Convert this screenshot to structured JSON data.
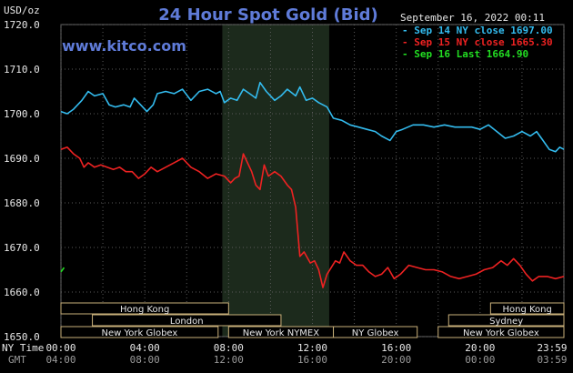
{
  "header": {
    "title": "24 Hour Spot Gold (Bid)",
    "website": "www.kitco.com",
    "unit": "USD/oz",
    "timestamp": "September 16, 2022 00:11"
  },
  "legend": [
    {
      "text": "Sep 14 NY close 1697.00",
      "color": "#33bbee"
    },
    {
      "text": "Sep 15 NY close 1665.30",
      "color": "#ee2222"
    },
    {
      "text": "Sep 16 Last 1664.90",
      "color": "#22dd22"
    }
  ],
  "sessions": [
    {
      "label": "Hong Kong",
      "start": 0,
      "end": 8,
      "row": 0
    },
    {
      "label": "Hong Kong",
      "start": 20.5,
      "end": 24,
      "row": 0
    },
    {
      "label": "London",
      "start": 1.5,
      "end": 10.5,
      "row": 1
    },
    {
      "label": "Sydney",
      "start": 18.5,
      "end": 24,
      "row": 1
    },
    {
      "label": "New York Globex",
      "start": 0,
      "end": 7.5,
      "row": 2
    },
    {
      "label": "New York NYMEX",
      "start": 8,
      "end": 13,
      "row": 2
    },
    {
      "label": "NY Globex",
      "start": 13,
      "end": 17,
      "row": 2
    },
    {
      "label": "New York Globex",
      "start": 18,
      "end": 24,
      "row": 2
    }
  ],
  "time_axis": {
    "ny_label": "NY Time",
    "gmt_label": "GMT",
    "ny": [
      "00:00",
      "04:00",
      "08:00",
      "12:00",
      "16:00",
      "20:00",
      "23:59"
    ],
    "gmt": [
      "04:00",
      "08:00",
      "12:00",
      "16:00",
      "20:00",
      "00:00",
      "03:59"
    ]
  },
  "chart_data": {
    "type": "line",
    "title": "24 Hour Spot Gold (Bid)",
    "ylabel": "USD/oz",
    "xlim": [
      0,
      24
    ],
    "ylim": [
      1650,
      1720
    ],
    "yticks": [
      "1650.0",
      "1660.0",
      "1670.0",
      "1680.0",
      "1690.0",
      "1700.0",
      "1710.0",
      "1720.0"
    ],
    "yticks_values": [
      1650,
      1660,
      1670,
      1680,
      1690,
      1700,
      1710,
      1720
    ],
    "grid": true,
    "shaded_region": [
      7.7,
      12.8
    ],
    "series": [
      {
        "name": "Sep 14 NY close 1697.00",
        "color": "#33bbee",
        "points": [
          [
            0,
            1700.5
          ],
          [
            0.3,
            1700
          ],
          [
            0.6,
            1701
          ],
          [
            1,
            1703
          ],
          [
            1.3,
            1705
          ],
          [
            1.6,
            1704
          ],
          [
            2,
            1704.5
          ],
          [
            2.3,
            1702
          ],
          [
            2.6,
            1701.5
          ],
          [
            3,
            1702
          ],
          [
            3.3,
            1701.5
          ],
          [
            3.5,
            1703.5
          ],
          [
            3.8,
            1702
          ],
          [
            4.1,
            1700.5
          ],
          [
            4.4,
            1702
          ],
          [
            4.6,
            1704.5
          ],
          [
            5,
            1705
          ],
          [
            5.4,
            1704.5
          ],
          [
            5.8,
            1705.5
          ],
          [
            6.2,
            1703
          ],
          [
            6.6,
            1705
          ],
          [
            7,
            1705.5
          ],
          [
            7.4,
            1704.5
          ],
          [
            7.6,
            1705
          ],
          [
            7.8,
            1702.5
          ],
          [
            8.1,
            1703.5
          ],
          [
            8.4,
            1703
          ],
          [
            8.7,
            1705.5
          ],
          [
            9,
            1704.5
          ],
          [
            9.3,
            1703.5
          ],
          [
            9.5,
            1707
          ],
          [
            9.8,
            1705
          ],
          [
            10.2,
            1703
          ],
          [
            10.5,
            1704
          ],
          [
            10.8,
            1705.5
          ],
          [
            11.2,
            1704
          ],
          [
            11.4,
            1706
          ],
          [
            11.7,
            1703
          ],
          [
            12,
            1703.5
          ],
          [
            12.3,
            1702.5
          ],
          [
            12.7,
            1701.5
          ],
          [
            13,
            1699
          ],
          [
            13.4,
            1698.5
          ],
          [
            13.8,
            1697.5
          ],
          [
            14.2,
            1697
          ],
          [
            14.6,
            1696.5
          ],
          [
            15,
            1696
          ],
          [
            15.3,
            1695
          ],
          [
            15.7,
            1694
          ],
          [
            16,
            1696
          ],
          [
            16.3,
            1696.5
          ],
          [
            16.8,
            1697.5
          ],
          [
            17.3,
            1697.5
          ],
          [
            17.8,
            1697
          ],
          [
            18.3,
            1697.5
          ],
          [
            18.8,
            1697
          ],
          [
            19.2,
            1697
          ],
          [
            19.6,
            1697
          ],
          [
            20,
            1696.5
          ],
          [
            20.4,
            1697.5
          ],
          [
            20.8,
            1696
          ],
          [
            21.2,
            1694.5
          ],
          [
            21.6,
            1695
          ],
          [
            22,
            1696
          ],
          [
            22.4,
            1695
          ],
          [
            22.7,
            1696
          ],
          [
            23,
            1694
          ],
          [
            23.3,
            1692
          ],
          [
            23.6,
            1691.5
          ],
          [
            23.8,
            1692.5
          ],
          [
            24,
            1692
          ]
        ]
      },
      {
        "name": "Sep 15 NY close 1665.30",
        "color": "#ee2222",
        "points": [
          [
            0,
            1692
          ],
          [
            0.3,
            1692.5
          ],
          [
            0.6,
            1691
          ],
          [
            0.9,
            1690
          ],
          [
            1.1,
            1688
          ],
          [
            1.3,
            1689
          ],
          [
            1.6,
            1688
          ],
          [
            1.9,
            1688.5
          ],
          [
            2.2,
            1688
          ],
          [
            2.5,
            1687.5
          ],
          [
            2.8,
            1688
          ],
          [
            3.1,
            1687
          ],
          [
            3.4,
            1687
          ],
          [
            3.7,
            1685.5
          ],
          [
            4,
            1686.5
          ],
          [
            4.3,
            1688
          ],
          [
            4.6,
            1687
          ],
          [
            5,
            1688
          ],
          [
            5.4,
            1689
          ],
          [
            5.8,
            1690
          ],
          [
            6.2,
            1688
          ],
          [
            6.6,
            1687
          ],
          [
            7,
            1685.5
          ],
          [
            7.4,
            1686.5
          ],
          [
            7.8,
            1686
          ],
          [
            8.1,
            1684.5
          ],
          [
            8.3,
            1685.5
          ],
          [
            8.5,
            1686
          ],
          [
            8.7,
            1691
          ],
          [
            8.9,
            1689
          ],
          [
            9.1,
            1687
          ],
          [
            9.3,
            1684
          ],
          [
            9.5,
            1683
          ],
          [
            9.7,
            1688.5
          ],
          [
            9.9,
            1686
          ],
          [
            10.2,
            1687
          ],
          [
            10.5,
            1686
          ],
          [
            10.8,
            1684
          ],
          [
            11,
            1683
          ],
          [
            11.2,
            1679
          ],
          [
            11.4,
            1668
          ],
          [
            11.6,
            1669
          ],
          [
            11.9,
            1666.5
          ],
          [
            12.1,
            1667
          ],
          [
            12.3,
            1665
          ],
          [
            12.5,
            1661
          ],
          [
            12.7,
            1664
          ],
          [
            12.9,
            1665.5
          ],
          [
            13.1,
            1667
          ],
          [
            13.3,
            1666.5
          ],
          [
            13.5,
            1669
          ],
          [
            13.8,
            1667
          ],
          [
            14.1,
            1666
          ],
          [
            14.4,
            1666
          ],
          [
            14.7,
            1664.5
          ],
          [
            15,
            1663.5
          ],
          [
            15.3,
            1664
          ],
          [
            15.6,
            1665.5
          ],
          [
            15.9,
            1663
          ],
          [
            16.2,
            1664
          ],
          [
            16.6,
            1666
          ],
          [
            17,
            1665.5
          ],
          [
            17.4,
            1665
          ],
          [
            17.8,
            1665
          ],
          [
            18.2,
            1664.5
          ],
          [
            18.6,
            1663.5
          ],
          [
            19,
            1663
          ],
          [
            19.4,
            1663.5
          ],
          [
            19.8,
            1664
          ],
          [
            20.2,
            1665
          ],
          [
            20.6,
            1665.5
          ],
          [
            21,
            1667
          ],
          [
            21.3,
            1666
          ],
          [
            21.6,
            1667.5
          ],
          [
            21.9,
            1666
          ],
          [
            22.2,
            1664
          ],
          [
            22.5,
            1662.5
          ],
          [
            22.8,
            1663.5
          ],
          [
            23.2,
            1663.5
          ],
          [
            23.6,
            1663
          ],
          [
            24,
            1663.5
          ]
        ]
      },
      {
        "name": "Sep 16 Last 1664.90",
        "color": "#22dd22",
        "points": [
          [
            0,
            1664.5
          ],
          [
            0.15,
            1665.5
          ]
        ]
      }
    ]
  }
}
